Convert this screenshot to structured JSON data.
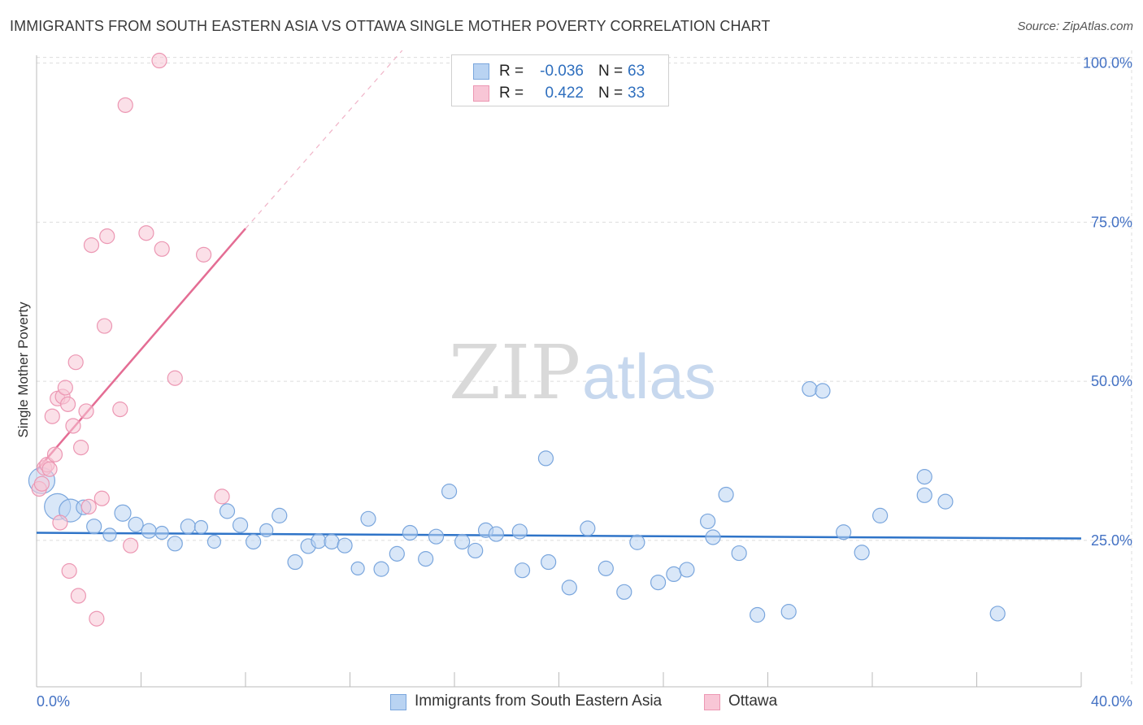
{
  "header": {
    "title": "IMMIGRANTS FROM SOUTH EASTERN ASIA VS OTTAWA SINGLE MOTHER POVERTY CORRELATION CHART",
    "source": "Source: ZipAtlas.com"
  },
  "watermark": {
    "zip": "ZIP",
    "atlas": "atlas"
  },
  "legend": {
    "rows": [
      {
        "r_label": "R =",
        "r_value": "-0.036",
        "n_label": "N =",
        "n_value": "63"
      },
      {
        "r_label": "R =",
        "r_value": "0.422",
        "n_label": "N =",
        "n_value": "33"
      }
    ]
  },
  "bottom_legend": {
    "series_a": "Immigrants from South Eastern Asia",
    "series_b": "Ottawa"
  },
  "colors": {
    "blue_fill": "#b9d3f2",
    "blue_stroke": "#7aa6dd",
    "blue_line": "#2f74c8",
    "pink_fill": "#f8c6d6",
    "pink_stroke": "#ec97b3",
    "pink_line": "#e46d94",
    "grid": "#dddddd",
    "axis_text": "#4472c4"
  },
  "chart_data": {
    "type": "scatter",
    "title": "IMMIGRANTS FROM SOUTH EASTERN ASIA VS OTTAWA SINGLE MOTHER POVERTY CORRELATION CHART",
    "xlabel": "",
    "ylabel": "Single Mother Poverty",
    "xlim": [
      0,
      40
    ],
    "ylim": [
      2,
      102
    ],
    "x_tick_labels": [
      "0.0%",
      "40.0%"
    ],
    "y_ticks": [
      25,
      50,
      75,
      100
    ],
    "y_tick_labels": [
      "25.0%",
      "50.0%",
      "75.0%",
      "100.0%"
    ],
    "grid": true,
    "legend_position": "top-center",
    "series": [
      {
        "name": "Immigrants from South Eastern Asia",
        "color": "#b9d3f2",
        "trend": {
          "x": [
            0,
            40
          ],
          "y": [
            26.2,
            25.3
          ]
        },
        "points": [
          [
            0.2,
            34.4,
            16
          ],
          [
            0.8,
            30.3,
            16
          ],
          [
            1.3,
            29.7,
            14
          ],
          [
            1.8,
            30.2,
            9
          ],
          [
            2.2,
            27.2,
            9
          ],
          [
            2.8,
            25.9,
            8
          ],
          [
            3.3,
            29.3,
            10
          ],
          [
            3.8,
            27.5,
            9
          ],
          [
            4.3,
            26.5,
            9
          ],
          [
            4.8,
            26.2,
            8
          ],
          [
            5.3,
            24.5,
            9
          ],
          [
            5.8,
            27.2,
            9
          ],
          [
            6.3,
            27.1,
            8
          ],
          [
            6.8,
            24.8,
            8
          ],
          [
            7.3,
            29.6,
            9
          ],
          [
            7.8,
            27.4,
            9
          ],
          [
            8.3,
            24.8,
            9
          ],
          [
            8.8,
            26.6,
            8
          ],
          [
            9.3,
            28.9,
            9
          ],
          [
            9.9,
            21.6,
            9
          ],
          [
            10.4,
            24.1,
            9
          ],
          [
            10.8,
            24.9,
            9
          ],
          [
            11.3,
            24.8,
            9
          ],
          [
            11.8,
            24.2,
            9
          ],
          [
            12.3,
            20.6,
            8
          ],
          [
            12.7,
            28.4,
            9
          ],
          [
            13.2,
            20.5,
            9
          ],
          [
            13.8,
            22.9,
            9
          ],
          [
            14.3,
            26.2,
            9
          ],
          [
            14.9,
            22.1,
            9
          ],
          [
            15.3,
            25.6,
            9
          ],
          [
            15.8,
            32.7,
            9
          ],
          [
            16.3,
            24.8,
            9
          ],
          [
            16.8,
            23.4,
            9
          ],
          [
            17.2,
            26.6,
            9
          ],
          [
            17.6,
            26.0,
            9
          ],
          [
            18.5,
            26.4,
            9
          ],
          [
            18.6,
            20.3,
            9
          ],
          [
            19.5,
            37.9,
            9
          ],
          [
            19.6,
            21.6,
            9
          ],
          [
            20.4,
            17.6,
            9
          ],
          [
            21.1,
            26.9,
            9
          ],
          [
            21.8,
            20.6,
            9
          ],
          [
            22.5,
            16.9,
            9
          ],
          [
            23.0,
            24.7,
            9
          ],
          [
            23.8,
            18.4,
            9
          ],
          [
            24.4,
            19.7,
            9
          ],
          [
            24.9,
            20.4,
            9
          ],
          [
            25.7,
            28.0,
            9
          ],
          [
            25.9,
            25.5,
            9
          ],
          [
            26.4,
            32.2,
            9
          ],
          [
            26.9,
            23.0,
            9
          ],
          [
            29.6,
            48.8,
            9
          ],
          [
            30.1,
            48.5,
            9
          ],
          [
            27.6,
            13.3,
            9
          ],
          [
            28.8,
            13.8,
            9
          ],
          [
            30.9,
            26.3,
            9
          ],
          [
            31.6,
            23.1,
            9
          ],
          [
            32.3,
            28.9,
            9
          ],
          [
            34.0,
            35.0,
            9
          ],
          [
            34.0,
            32.1,
            9
          ],
          [
            34.8,
            31.1,
            9
          ],
          [
            36.8,
            13.5,
            9
          ]
        ]
      },
      {
        "name": "Ottawa",
        "color": "#f8c6d6",
        "trend": {
          "x": [
            0,
            8
          ],
          "y": [
            36.0,
            74.0
          ],
          "dashed_x": [
            8,
            14
          ],
          "dashed_y": [
            74.0,
            102.0
          ]
        },
        "points": [
          [
            0.1,
            33.1,
            9
          ],
          [
            0.2,
            33.9,
            9
          ],
          [
            0.3,
            36.4,
            9
          ],
          [
            0.4,
            36.9,
            9
          ],
          [
            0.5,
            36.2,
            9
          ],
          [
            0.6,
            44.5,
            9
          ],
          [
            0.7,
            38.5,
            9
          ],
          [
            0.8,
            47.3,
            9
          ],
          [
            0.9,
            27.8,
            9
          ],
          [
            1.0,
            47.6,
            9
          ],
          [
            1.1,
            49.0,
            9
          ],
          [
            1.2,
            46.4,
            9
          ],
          [
            1.25,
            20.2,
            9
          ],
          [
            1.4,
            43.0,
            9
          ],
          [
            1.5,
            53.0,
            9
          ],
          [
            1.6,
            16.3,
            9
          ],
          [
            1.7,
            39.6,
            9
          ],
          [
            1.9,
            45.3,
            9
          ],
          [
            2.0,
            30.3,
            9
          ],
          [
            2.1,
            71.4,
            9
          ],
          [
            2.3,
            12.7,
            9
          ],
          [
            2.5,
            31.6,
            9
          ],
          [
            2.6,
            58.7,
            9
          ],
          [
            2.7,
            72.8,
            9
          ],
          [
            3.2,
            45.6,
            9
          ],
          [
            3.4,
            93.4,
            9
          ],
          [
            3.6,
            24.2,
            9
          ],
          [
            4.2,
            73.3,
            9
          ],
          [
            4.7,
            100.4,
            9
          ],
          [
            4.8,
            70.8,
            9
          ],
          [
            5.3,
            50.5,
            9
          ],
          [
            6.4,
            69.9,
            9
          ],
          [
            7.1,
            31.9,
            9
          ]
        ]
      }
    ]
  }
}
